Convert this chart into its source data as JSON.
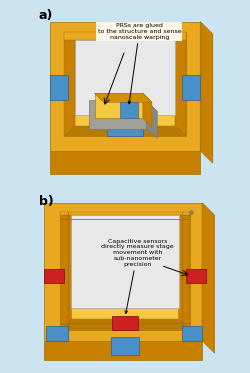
{
  "bg_color": "#cce4f0",
  "gold_main": "#E8A820",
  "gold_dark": "#C88000",
  "gold_light": "#F5C842",
  "blue_sensor": "#4A90C8",
  "blue_sensor_dark": "#2A6090",
  "red_sensor": "#CC2222",
  "white_platform": "#E8E8E8",
  "panel_a_label": "a)",
  "panel_b_label": "b)",
  "annotation_a": "PRSs are glued\nto the structure and sense\nnanoscale warping",
  "annotation_b": "Capacitive sensors\ndirectly measure stage\nmovement with\nsub-nanometer\nprecision"
}
